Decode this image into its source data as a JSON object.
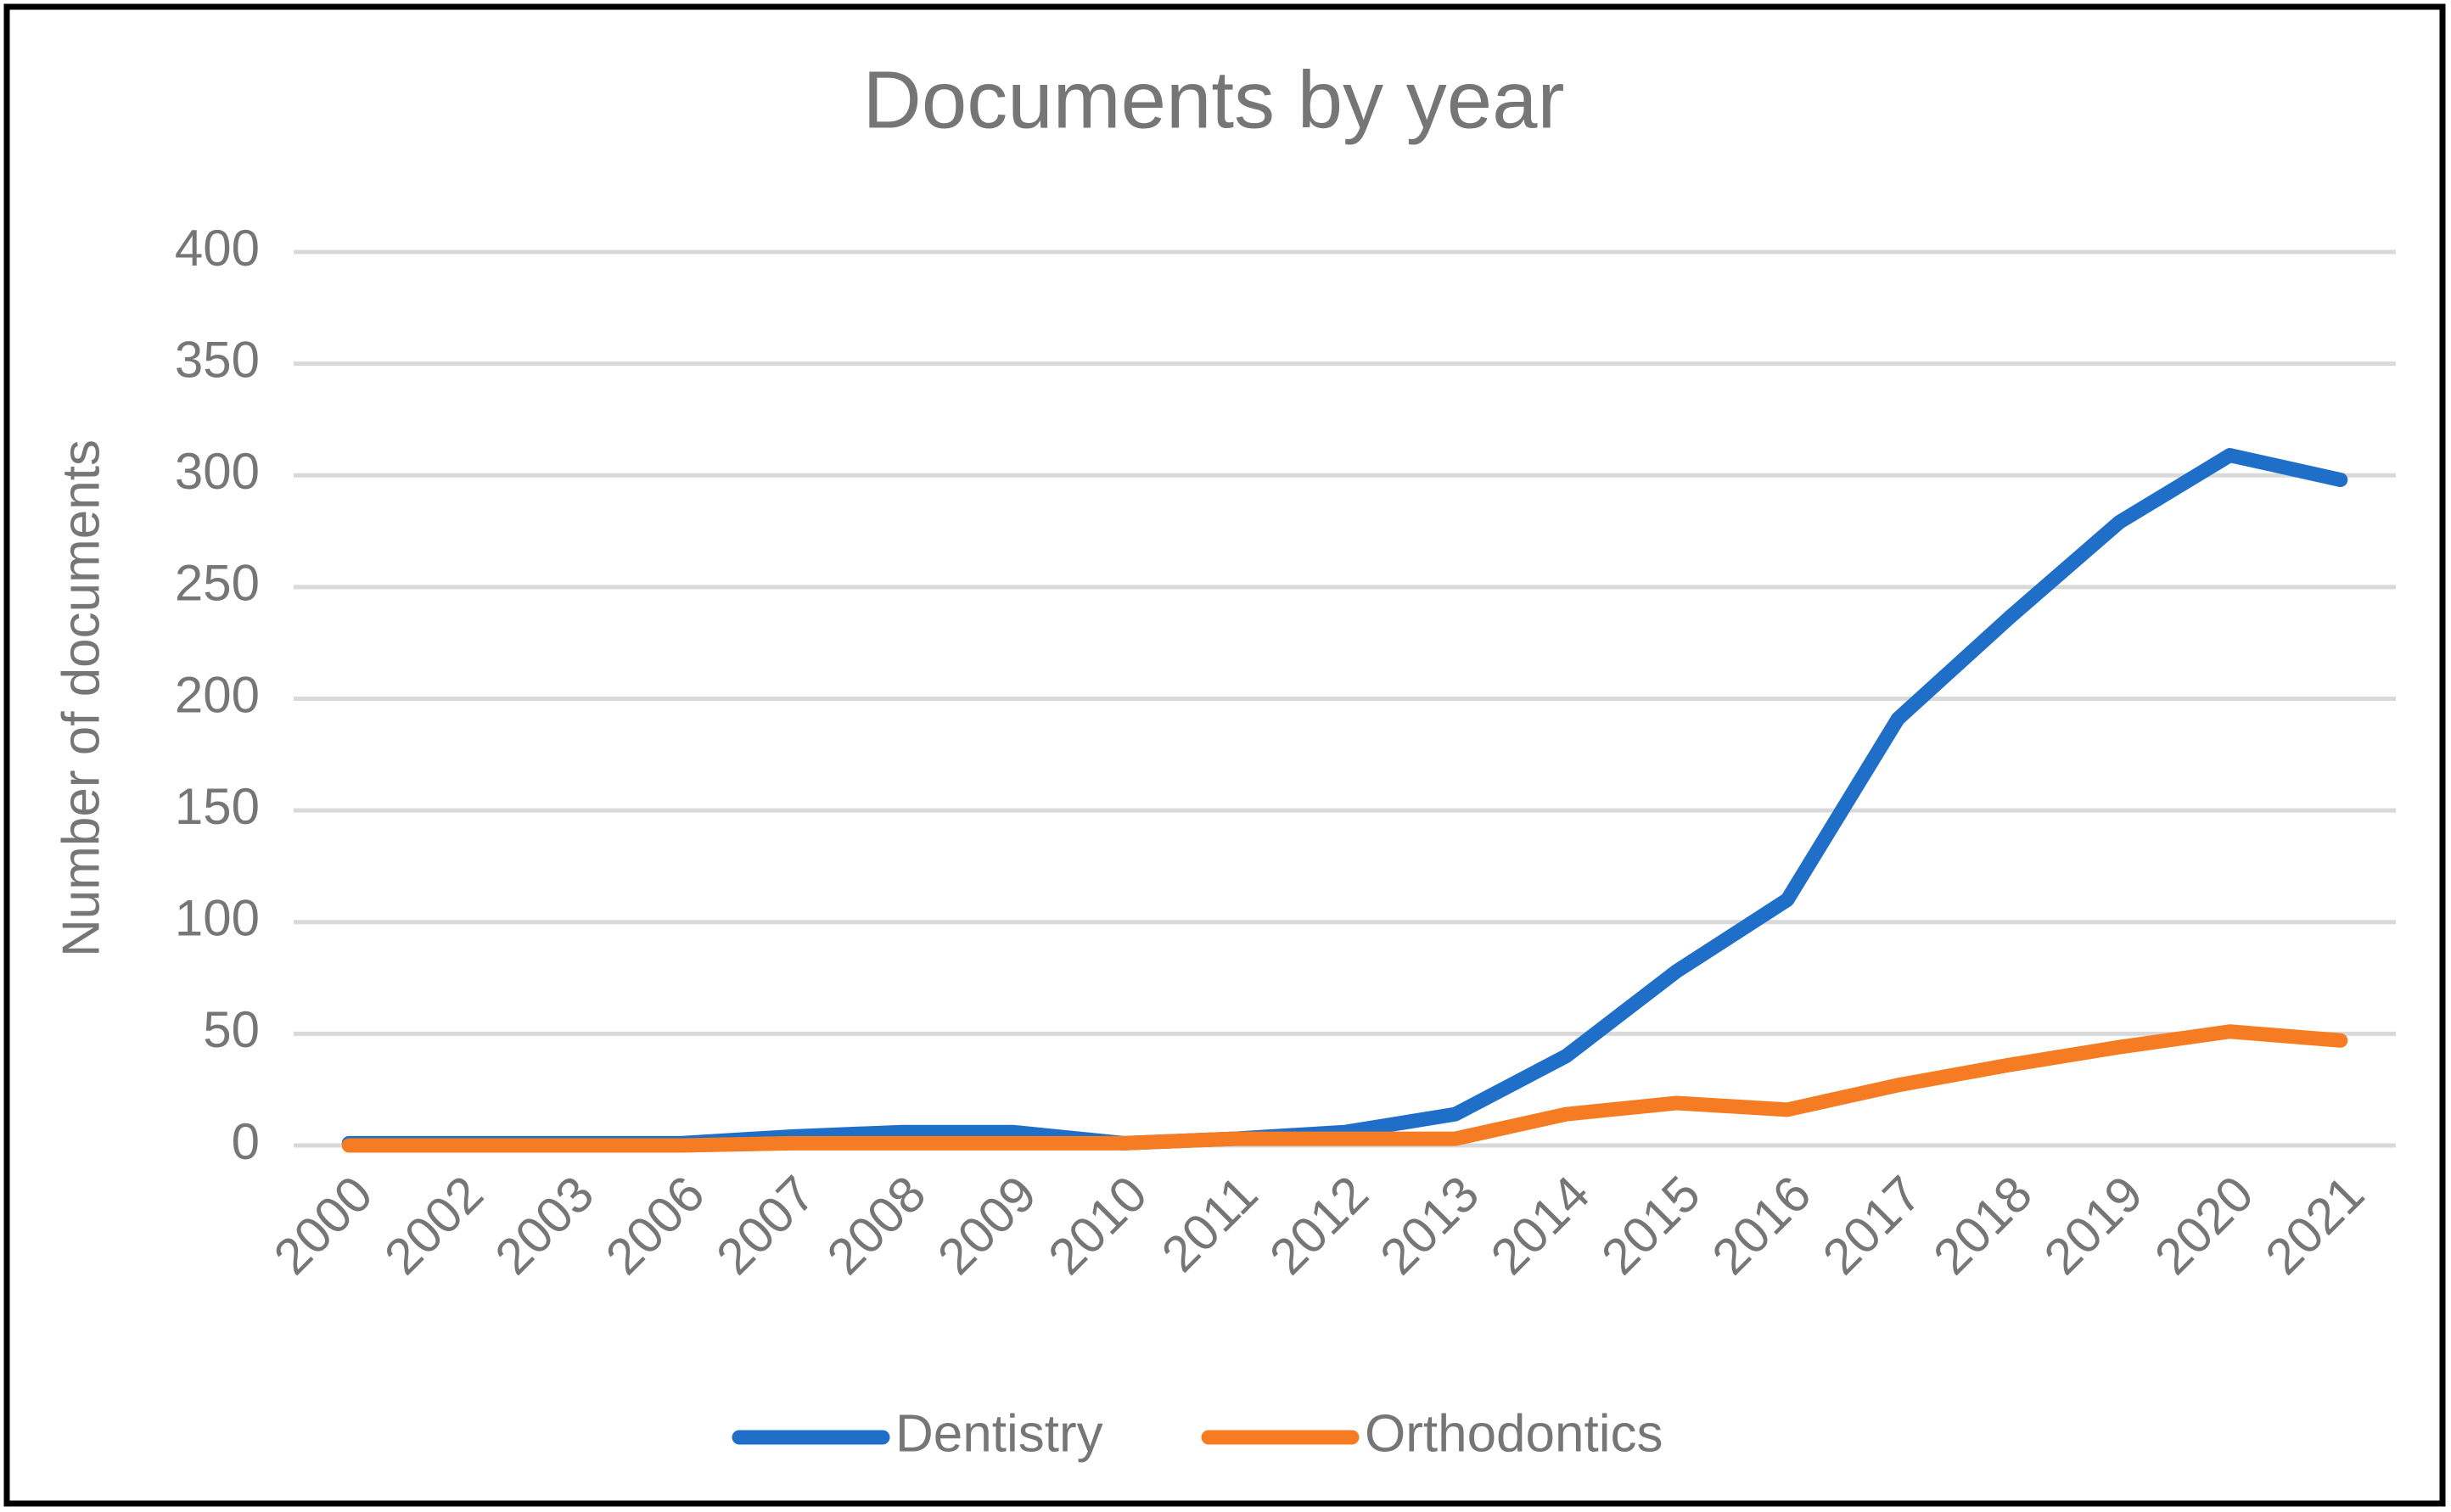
{
  "chart_data": {
    "type": "line",
    "title": "Documents by year",
    "y_label": "Number of documents",
    "categories": [
      "2000",
      "2002",
      "2003",
      "2006",
      "2007",
      "2008",
      "2009",
      "2010",
      "2011",
      "2012",
      "2013",
      "2014",
      "2015",
      "2016",
      "2017",
      "2018",
      "2019",
      "2020",
      "2021"
    ],
    "series": [
      {
        "name": "Dentistry",
        "color": "#1f6fc9",
        "values": [
          1,
          1,
          1,
          1,
          4,
          6,
          6,
          1,
          3,
          6,
          14,
          40,
          78,
          110,
          191,
          236,
          279,
          309,
          298
        ]
      },
      {
        "name": "Orthodontics",
        "color": "#f57c22",
        "values": [
          0,
          0,
          0,
          0,
          1,
          1,
          1,
          1,
          3,
          3,
          3,
          14,
          19,
          16,
          27,
          36,
          44,
          51,
          47
        ]
      }
    ],
    "ylim": [
      0,
      400
    ],
    "yticks": [
      0,
      50,
      100,
      150,
      200,
      250,
      300,
      350,
      400
    ],
    "grid": true,
    "legend": "bottom"
  }
}
